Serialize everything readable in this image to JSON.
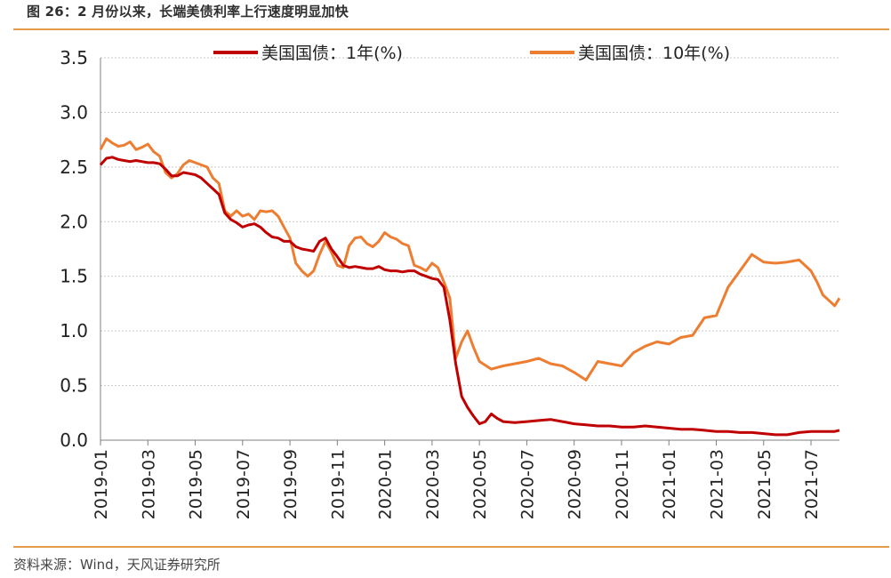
{
  "title": "图 26：2 月份以来，长端美债利率上行速度明显加快",
  "source": "资料来源：Wind，天风证券研究所",
  "colors": {
    "accent": "#e39b4a",
    "series_1y": "#c00000",
    "series_10y": "#ed7d31"
  },
  "chart_data": {
    "type": "line",
    "title": "",
    "xlabel": "",
    "ylabel": "",
    "ylim": [
      0,
      3.5
    ],
    "yticks": [
      "0.0",
      "0.5",
      "1.0",
      "1.5",
      "2.0",
      "2.5",
      "3.0",
      "3.5"
    ],
    "xlim": [
      0,
      31.2
    ],
    "xtick_labels": [
      "2019-01",
      "2019-03",
      "2019-05",
      "2019-07",
      "2019-09",
      "2019-11",
      "2020-01",
      "2020-03",
      "2020-05",
      "2020-07",
      "2020-09",
      "2020-11",
      "2021-01",
      "2021-03",
      "2021-05",
      "2021-07"
    ],
    "grid": true,
    "legend": "top",
    "series": [
      {
        "name": "美国国债：1年(%)",
        "x": [
          0,
          0.25,
          0.5,
          0.75,
          1,
          1.25,
          1.5,
          1.75,
          2,
          2.25,
          2.5,
          2.75,
          3,
          3.25,
          3.5,
          3.75,
          4,
          4.25,
          4.5,
          4.75,
          5,
          5.25,
          5.5,
          5.75,
          6,
          6.25,
          6.5,
          6.75,
          7,
          7.25,
          7.5,
          7.75,
          8,
          8.25,
          8.5,
          8.75,
          9,
          9.25,
          9.5,
          9.75,
          10,
          10.25,
          10.5,
          10.75,
          11,
          11.25,
          11.5,
          11.75,
          12,
          12.25,
          12.5,
          12.75,
          13,
          13.25,
          13.5,
          13.75,
          14,
          14.25,
          14.5,
          14.75,
          15,
          15.25,
          15.5,
          15.75,
          16,
          16.25,
          16.5,
          16.75,
          17,
          17.5,
          18,
          18.5,
          19,
          19.5,
          20,
          20.5,
          21,
          21.5,
          22,
          22.5,
          23,
          23.5,
          24,
          24.5,
          25,
          25.5,
          26,
          26.5,
          27,
          27.5,
          28,
          28.5,
          29,
          29.5,
          30,
          30.5,
          31,
          31.2
        ],
        "values": [
          2.52,
          2.58,
          2.59,
          2.57,
          2.56,
          2.55,
          2.56,
          2.55,
          2.54,
          2.54,
          2.53,
          2.48,
          2.42,
          2.42,
          2.45,
          2.44,
          2.43,
          2.4,
          2.35,
          2.3,
          2.25,
          2.08,
          2.02,
          1.99,
          1.95,
          1.97,
          1.98,
          1.95,
          1.9,
          1.86,
          1.85,
          1.82,
          1.82,
          1.77,
          1.75,
          1.74,
          1.73,
          1.82,
          1.85,
          1.75,
          1.68,
          1.6,
          1.58,
          1.59,
          1.58,
          1.57,
          1.57,
          1.59,
          1.56,
          1.55,
          1.55,
          1.54,
          1.55,
          1.55,
          1.52,
          1.5,
          1.48,
          1.47,
          1.4,
          1.1,
          0.7,
          0.4,
          0.3,
          0.22,
          0.15,
          0.17,
          0.24,
          0.2,
          0.17,
          0.16,
          0.17,
          0.18,
          0.19,
          0.17,
          0.15,
          0.14,
          0.13,
          0.13,
          0.12,
          0.12,
          0.13,
          0.12,
          0.11,
          0.1,
          0.1,
          0.09,
          0.08,
          0.08,
          0.07,
          0.07,
          0.06,
          0.05,
          0.05,
          0.07,
          0.08,
          0.08,
          0.08,
          0.09
        ]
      },
      {
        "name": "美国国债：10年(%)",
        "x": [
          0,
          0.25,
          0.5,
          0.75,
          1,
          1.25,
          1.5,
          1.75,
          2,
          2.25,
          2.5,
          2.75,
          3,
          3.25,
          3.5,
          3.75,
          4,
          4.25,
          4.5,
          4.75,
          5,
          5.25,
          5.5,
          5.75,
          6,
          6.25,
          6.5,
          6.75,
          7,
          7.25,
          7.5,
          7.75,
          8,
          8.25,
          8.5,
          8.75,
          9,
          9.25,
          9.5,
          9.75,
          10,
          10.25,
          10.5,
          10.75,
          11,
          11.25,
          11.5,
          11.75,
          12,
          12.25,
          12.5,
          12.75,
          13,
          13.25,
          13.5,
          13.75,
          14,
          14.25,
          14.5,
          14.75,
          15,
          15.25,
          15.5,
          15.75,
          16,
          16.5,
          17,
          17.5,
          18,
          18.5,
          19,
          19.5,
          20,
          20.5,
          21,
          21.5,
          22,
          22.5,
          23,
          23.5,
          24,
          24.5,
          25,
          25.5,
          26,
          26.5,
          27,
          27.5,
          28,
          28.5,
          29,
          29.5,
          30,
          30.25,
          30.5,
          30.75,
          31,
          31.2
        ],
        "values": [
          2.66,
          2.76,
          2.72,
          2.69,
          2.7,
          2.73,
          2.66,
          2.68,
          2.71,
          2.64,
          2.6,
          2.45,
          2.4,
          2.44,
          2.52,
          2.56,
          2.54,
          2.52,
          2.5,
          2.4,
          2.35,
          2.1,
          2.05,
          2.1,
          2.05,
          2.07,
          2.02,
          2.1,
          2.09,
          2.1,
          2.05,
          1.95,
          1.85,
          1.62,
          1.55,
          1.5,
          1.55,
          1.7,
          1.82,
          1.72,
          1.6,
          1.58,
          1.78,
          1.85,
          1.86,
          1.8,
          1.77,
          1.82,
          1.9,
          1.86,
          1.84,
          1.8,
          1.78,
          1.6,
          1.58,
          1.55,
          1.62,
          1.58,
          1.45,
          1.3,
          0.75,
          0.9,
          1.0,
          0.85,
          0.72,
          0.65,
          0.68,
          0.7,
          0.72,
          0.75,
          0.7,
          0.68,
          0.62,
          0.55,
          0.72,
          0.7,
          0.68,
          0.8,
          0.86,
          0.9,
          0.88,
          0.94,
          0.96,
          1.12,
          1.14,
          1.4,
          1.55,
          1.7,
          1.63,
          1.62,
          1.63,
          1.65,
          1.55,
          1.45,
          1.33,
          1.28,
          1.23,
          1.3
        ]
      }
    ]
  }
}
